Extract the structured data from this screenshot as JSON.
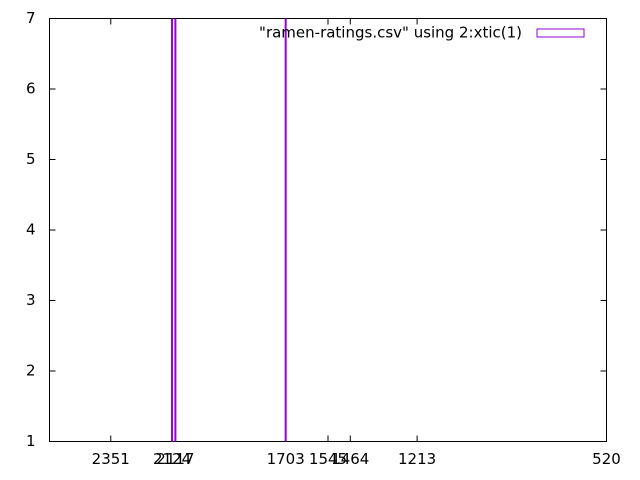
{
  "chart_data": {
    "type": "bar",
    "series": [
      {
        "name": "\"ramen-ratings.csv\" using 2:xtic(1)",
        "color": "#9400d3",
        "x": [
          22,
          22.6,
          42.4
        ],
        "values": [
          7,
          7,
          7
        ]
      }
    ],
    "xlim": [
      0,
      100
    ],
    "xticks": [
      {
        "value": 11,
        "label": "2351"
      },
      {
        "value": 22,
        "label": "2124"
      },
      {
        "value": 22.6,
        "label": "2117"
      },
      {
        "value": 42.4,
        "label": "1703"
      },
      {
        "value": 50,
        "label": "1545"
      },
      {
        "value": 54,
        "label": "1464"
      },
      {
        "value": 66,
        "label": "1213"
      },
      {
        "value": 100,
        "label": "520"
      }
    ],
    "ylim": [
      1,
      7
    ],
    "yticks": [
      1,
      2,
      3,
      4,
      5,
      6,
      7
    ],
    "legend": "top-right"
  }
}
